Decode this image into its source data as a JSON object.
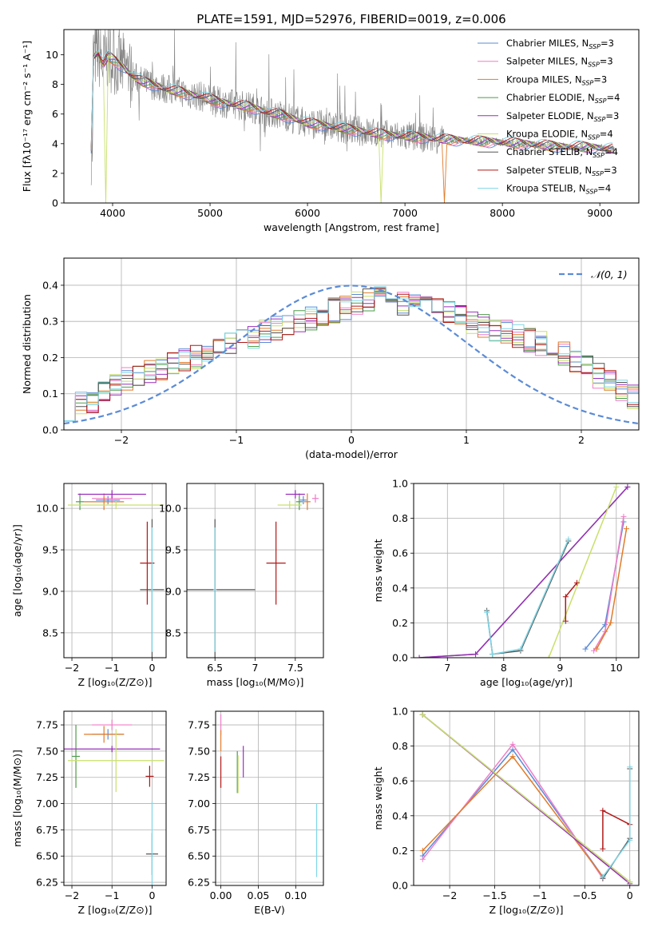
{
  "figure_title": "PLATE=1591, MJD=52976, FIBERID=0019, z=0.006",
  "colors": {
    "chabrier_miles": "#5b8bd6",
    "salpeter_miles": "#f07cc8",
    "kroupa_miles": "#e07b2a",
    "chabrier_elodie": "#4e9c4a",
    "salpeter_elodie": "#9a2ebc",
    "kroupa_elodie": "#c8e06a",
    "chabrier_stelib": "#555555",
    "salpeter_stelib": "#b01818",
    "kroupa_stelib": "#7fd6e6",
    "data": "#808080",
    "normal": "#5b8bd6"
  },
  "chart_data": [
    {
      "id": "spectrum",
      "type": "line",
      "title": "PLATE=1591, MJD=52976, FIBERID=0019, z=0.006",
      "xlabel": "wavelength [Angstrom, rest frame]",
      "ylabel": "Flux [fλ10⁻¹⁷ erg cm⁻² s⁻¹ A⁻¹]",
      "xlim": [
        3500,
        9400
      ],
      "ylim": [
        0,
        11.7
      ],
      "xticks": [
        4000,
        5000,
        6000,
        7000,
        8000,
        9000
      ],
      "yticks": [
        0,
        2,
        4,
        6,
        8,
        10
      ],
      "legend_position": "top-right",
      "legend": [
        {
          "label": "Chabrier MILES, N",
          "sub": "SSP",
          "suffix": "=3",
          "color": "#5b8bd6"
        },
        {
          "label": "Salpeter MILES, N",
          "sub": "SSP",
          "suffix": "=3",
          "color": "#f07cc8"
        },
        {
          "label": "Kroupa MILES, N",
          "sub": "SSP",
          "suffix": "=3",
          "color": "#e07b2a"
        },
        {
          "label": "Chabrier ELODIE, N",
          "sub": "SSP",
          "suffix": "=4",
          "color": "#4e9c4a"
        },
        {
          "label": "Salpeter ELODIE, N",
          "sub": "SSP",
          "suffix": "=3",
          "color": "#9a2ebc"
        },
        {
          "label": "Kroupa ELODIE, N",
          "sub": "SSP",
          "suffix": "=4",
          "color": "#c8e06a"
        },
        {
          "label": "Chabrier STELIB, N",
          "sub": "SSP",
          "suffix": "=4",
          "color": "#555555"
        },
        {
          "label": "Salpeter STELIB, N",
          "sub": "SSP",
          "suffix": "=3",
          "color": "#b01818"
        },
        {
          "label": "Kroupa STELIB, N",
          "sub": "SSP",
          "suffix": "=4",
          "color": "#7fd6e6"
        }
      ],
      "model_curve": {
        "x": [
          3800,
          3850,
          3900,
          3950,
          4000,
          4100,
          4200,
          4300,
          4400,
          4500,
          4600,
          4700,
          4800,
          4900,
          5000,
          5100,
          5200,
          5300,
          5400,
          5500,
          5600,
          5700,
          5800,
          5900,
          6000,
          6200,
          6400,
          6600,
          6800,
          7000,
          7200,
          7400,
          7600,
          7800,
          8000,
          8200,
          8400,
          8600,
          8800,
          9000,
          9200
        ],
        "y": [
          9.8,
          10.2,
          9.3,
          9.9,
          9.7,
          9.2,
          8.6,
          8.2,
          8.0,
          7.8,
          7.6,
          7.5,
          7.3,
          7.2,
          7.0,
          6.8,
          6.7,
          6.6,
          6.5,
          6.3,
          6.1,
          6.0,
          5.8,
          5.6,
          5.4,
          5.2,
          5.0,
          4.8,
          4.6,
          4.5,
          4.4,
          4.3,
          4.2,
          4.15,
          4.1,
          4.0,
          3.9,
          3.8,
          3.8,
          3.7,
          3.6
        ]
      },
      "model_dropouts": [
        {
          "x": 3930,
          "series": "Kroupa ELODIE"
        },
        {
          "x": 6760,
          "series": "Kroupa ELODIE"
        },
        {
          "x": 7400,
          "series": "Kroupa MILES"
        }
      ]
    },
    {
      "id": "residuals",
      "type": "line",
      "xlabel": "(data-model)/error",
      "ylabel": "Normed distribution",
      "xlim": [
        -2.5,
        2.5
      ],
      "ylim": [
        0,
        0.475
      ],
      "xticks": [
        -2,
        -1,
        0,
        1,
        2
      ],
      "yticks": [
        0.0,
        0.1,
        0.2,
        0.3,
        0.4
      ],
      "legend": [
        {
          "label": "𝒩(0, 1)",
          "color": "#5b8bd6",
          "style": "dashed"
        }
      ],
      "legend_position": "top-right",
      "histogram_base": {
        "bin_edges_start": -2.5,
        "bin_width": 0.1,
        "values": [
          0.06,
          0.07,
          0.08,
          0.1,
          0.12,
          0.14,
          0.15,
          0.16,
          0.17,
          0.18,
          0.19,
          0.2,
          0.21,
          0.22,
          0.24,
          0.25,
          0.26,
          0.27,
          0.28,
          0.29,
          0.3,
          0.31,
          0.32,
          0.33,
          0.34,
          0.35,
          0.36,
          0.37,
          0.36,
          0.35,
          0.35,
          0.34,
          0.33,
          0.32,
          0.31,
          0.3,
          0.29,
          0.28,
          0.27,
          0.26,
          0.25,
          0.24,
          0.22,
          0.21,
          0.19,
          0.17,
          0.15,
          0.13,
          0.11,
          0.09
        ]
      }
    },
    {
      "id": "age-vs-Z",
      "type": "scatter",
      "xlabel": "Z [log₁₀(Z/Z⊙)]",
      "ylabel": "age  [log₁₀(age/yr)]",
      "xlim": [
        -2.2,
        0.35
      ],
      "ylim": [
        8.2,
        10.3
      ],
      "xticks": [
        -2,
        -1,
        0
      ],
      "yticks": [
        8.5,
        9.0,
        9.5,
        10.0
      ],
      "points": [
        {
          "series": "Chabrier MILES",
          "x": -1.1,
          "y": 10.1,
          "xerr": 0.3,
          "yerr": 0.05
        },
        {
          "series": "Salpeter MILES",
          "x": -1.0,
          "y": 10.12,
          "xerr": 0.5,
          "yerr": 0.05
        },
        {
          "series": "Kroupa MILES",
          "x": -1.2,
          "y": 10.08,
          "xerr": 0.5,
          "yerr": 0.1
        },
        {
          "series": "Chabrier ELODIE",
          "x": -1.8,
          "y": 10.08,
          "xerr": 0.1,
          "yerr": 0.1
        },
        {
          "series": "Salpeter ELODIE",
          "x": -1.0,
          "y": 10.17,
          "xerr": 0.85,
          "yerr": 0.05
        },
        {
          "series": "Kroupa ELODIE",
          "x": -0.9,
          "y": 10.04,
          "xerr": 1.2,
          "yerr": 0.05
        },
        {
          "series": "Chabrier STELIB",
          "x": 0.0,
          "y": 9.02,
          "xerr": 0.3,
          "yerr": 0.85
        },
        {
          "series": "Salpeter STELIB",
          "x": -0.12,
          "y": 9.34,
          "xerr": 0.18,
          "yerr": 0.5
        },
        {
          "series": "Kroupa STELIB",
          "x": 0.0,
          "y": 9.02,
          "xerr": 0.02,
          "yerr": 0.75
        }
      ]
    },
    {
      "id": "age-vs-mass",
      "type": "scatter",
      "xlabel": "mass [log₁₀(M/M⊙)]",
      "ylabel": "",
      "xlim": [
        6.15,
        7.85
      ],
      "ylim": [
        8.2,
        10.3
      ],
      "xticks": [
        6.5,
        7.0,
        7.5
      ],
      "yticks": [
        8.5,
        9.0,
        9.5,
        10.0
      ],
      "points": [
        {
          "series": "Chabrier MILES",
          "x": 7.6,
          "y": 10.1,
          "xerr": 0.04,
          "yerr": 0.05
        },
        {
          "series": "Salpeter MILES",
          "x": 7.75,
          "y": 10.12,
          "xerr": 0.04,
          "yerr": 0.05
        },
        {
          "series": "Kroupa MILES",
          "x": 7.65,
          "y": 10.08,
          "xerr": 0.04,
          "yerr": 0.1
        },
        {
          "series": "Chabrier ELODIE",
          "x": 7.55,
          "y": 10.08,
          "xerr": 0.04,
          "yerr": 0.1
        },
        {
          "series": "Salpeter ELODIE",
          "x": 7.5,
          "y": 10.17,
          "xerr": 0.12,
          "yerr": 0.05
        },
        {
          "series": "Kroupa ELODIE",
          "x": 7.43,
          "y": 10.04,
          "xerr": 0.15,
          "yerr": 0.05
        },
        {
          "series": "Chabrier STELIB",
          "x": 6.5,
          "y": 9.02,
          "xerr": 0.5,
          "yerr": 0.85
        },
        {
          "series": "Salpeter STELIB",
          "x": 7.26,
          "y": 9.34,
          "xerr": 0.12,
          "yerr": 0.5
        },
        {
          "series": "Kroupa STELIB",
          "x": 6.5,
          "y": 9.02,
          "xerr": 0.02,
          "yerr": 0.75
        }
      ]
    },
    {
      "id": "weight-vs-age",
      "type": "line",
      "xlabel": "age  [log₁₀(age/yr)]",
      "ylabel": "mass weight",
      "xlim": [
        6.4,
        10.4
      ],
      "ylim": [
        0,
        1.0
      ],
      "xticks": [
        7,
        8,
        9,
        10
      ],
      "yticks": [
        0.0,
        0.2,
        0.4,
        0.6,
        0.8,
        1.0
      ],
      "series": [
        {
          "name": "Chabrier MILES",
          "x": [
            9.45,
            9.8,
            10.13
          ],
          "y": [
            0.05,
            0.19,
            0.78
          ]
        },
        {
          "name": "Salpeter MILES",
          "x": [
            9.6,
            9.8,
            10.13
          ],
          "y": [
            0.04,
            0.15,
            0.81
          ]
        },
        {
          "name": "Kroupa MILES",
          "x": [
            9.65,
            9.9,
            10.18
          ],
          "y": [
            0.05,
            0.2,
            0.74
          ]
        },
        {
          "name": "Chabrier ELODIE",
          "x": [
            6.5,
            7.5,
            10.2
          ],
          "y": [
            0.0,
            0.02,
            0.98
          ]
        },
        {
          "name": "Salpeter ELODIE",
          "x": [
            6.5,
            7.5,
            10.2
          ],
          "y": [
            0.0,
            0.02,
            0.98
          ]
        },
        {
          "name": "Kroupa ELODIE",
          "x": [
            7.8,
            8.8,
            10.0
          ],
          "y": [
            0.0,
            0.0,
            0.98
          ]
        },
        {
          "name": "Chabrier STELIB",
          "x": [
            7.7,
            7.8,
            8.3,
            9.15
          ],
          "y": [
            0.27,
            0.02,
            0.04,
            0.67
          ]
        },
        {
          "name": "Salpeter STELIB",
          "x": [
            9.1,
            9.1,
            9.3
          ],
          "y": [
            0.21,
            0.35,
            0.43
          ]
        },
        {
          "name": "Kroupa STELIB",
          "x": [
            7.7,
            7.8,
            8.3,
            9.15
          ],
          "y": [
            0.26,
            0.02,
            0.05,
            0.68
          ]
        }
      ]
    },
    {
      "id": "mass-vs-Z",
      "type": "scatter",
      "xlabel": "Z [log₁₀(Z/Z⊙)]",
      "ylabel": "mass [log₁₀(M/M⊙)]",
      "xlim": [
        -2.2,
        0.35
      ],
      "ylim": [
        6.22,
        7.88
      ],
      "xticks": [
        -2,
        -1,
        0
      ],
      "yticks": [
        6.25,
        6.5,
        6.75,
        7.0,
        7.25,
        7.5,
        7.75
      ],
      "points": [
        {
          "series": "Chabrier MILES",
          "x": -1.1,
          "y": 7.66,
          "xerr": 0.4,
          "yerr": 0.05
        },
        {
          "series": "Salpeter MILES",
          "x": -1.0,
          "y": 7.75,
          "xerr": 0.5,
          "yerr": 0.05
        },
        {
          "series": "Kroupa MILES",
          "x": -1.2,
          "y": 7.66,
          "xerr": 0.5,
          "yerr": 0.08
        },
        {
          "series": "Chabrier ELODIE",
          "x": -1.9,
          "y": 7.45,
          "xerr": 0.1,
          "yerr": 0.3
        },
        {
          "series": "Salpeter ELODIE",
          "x": -1.0,
          "y": 7.52,
          "xerr": 1.2,
          "yerr": 0.03
        },
        {
          "series": "Kroupa ELODIE",
          "x": -0.9,
          "y": 7.41,
          "xerr": 1.2,
          "yerr": 0.3
        },
        {
          "series": "Chabrier STELIB",
          "x": 0.0,
          "y": 6.52,
          "xerr": 0.15,
          "yerr": 0.2
        },
        {
          "series": "Salpeter STELIB",
          "x": -0.06,
          "y": 7.26,
          "xerr": 0.1,
          "yerr": 0.1
        },
        {
          "series": "Kroupa STELIB",
          "x": 0.0,
          "y": 6.5,
          "xerr": 0.02,
          "yerr": 0.52
        }
      ]
    },
    {
      "id": "mass-vs-ebv",
      "type": "scatter",
      "xlabel": "E(B-V)",
      "ylabel": "",
      "xlim": [
        -0.007,
        0.137
      ],
      "ylim": [
        6.22,
        7.88
      ],
      "xticks": [
        0.0,
        0.05,
        0.1
      ],
      "xtick_labels": [
        "0.00",
        "0.05",
        "0.10"
      ],
      "yticks": [
        6.25,
        6.5,
        6.75,
        7.0,
        7.25,
        7.5,
        7.75
      ],
      "points": [
        {
          "series": "Salpeter MILES",
          "x": 0.0,
          "y": 7.75,
          "xerr": 0.0,
          "yerr": 0.1
        },
        {
          "series": "Kroupa MILES",
          "x": 0.0,
          "y": 7.6,
          "xerr": 0.0,
          "yerr": 0.1
        },
        {
          "series": "Salpeter STELIB",
          "x": 0.0,
          "y": 7.3,
          "xerr": 0.0,
          "yerr": 0.15
        },
        {
          "series": "Chabrier ELODIE",
          "x": 0.022,
          "y": 7.3,
          "xerr": 0.0,
          "yerr": 0.2
        },
        {
          "series": "Kroupa ELODIE",
          "x": 0.023,
          "y": 7.28,
          "xerr": 0.0,
          "yerr": 0.18
        },
        {
          "series": "Salpeter ELODIE",
          "x": 0.03,
          "y": 7.4,
          "xerr": 0.0,
          "yerr": 0.15
        },
        {
          "series": "Kroupa STELIB",
          "x": 0.128,
          "y": 6.65,
          "xerr": 0.0,
          "yerr": 0.35
        }
      ]
    },
    {
      "id": "weight-vs-Z",
      "type": "line",
      "xlabel": "Z [log₁₀(Z/Z⊙)]",
      "ylabel": "mass weight",
      "xlim": [
        -2.4,
        0.1
      ],
      "ylim": [
        0,
        1.0
      ],
      "xticks": [
        -2.0,
        -1.5,
        -1.0,
        -0.5,
        0.0
      ],
      "yticks": [
        0.0,
        0.2,
        0.4,
        0.6,
        0.8,
        1.0
      ],
      "series": [
        {
          "name": "Chabrier MILES",
          "x": [
            -2.3,
            -1.3,
            -0.3
          ],
          "y": [
            0.17,
            0.78,
            0.05
          ]
        },
        {
          "name": "Salpeter MILES",
          "x": [
            -2.3,
            -1.3,
            -0.3
          ],
          "y": [
            0.15,
            0.81,
            0.04
          ]
        },
        {
          "name": "Kroupa MILES",
          "x": [
            -2.3,
            -1.3,
            -0.3
          ],
          "y": [
            0.2,
            0.74,
            0.05
          ]
        },
        {
          "name": "Chabrier ELODIE",
          "x": [
            -2.3,
            0.0
          ],
          "y": [
            0.98,
            0.02
          ]
        },
        {
          "name": "Salpeter ELODIE",
          "x": [
            -2.3,
            0.0
          ],
          "y": [
            0.98,
            0.01
          ]
        },
        {
          "name": "Kroupa ELODIE",
          "x": [
            -2.3,
            0.0
          ],
          "y": [
            0.98,
            0.02
          ]
        },
        {
          "name": "Chabrier STELIB",
          "x": [
            -0.3,
            0.0,
            0.0
          ],
          "y": [
            0.04,
            0.27,
            0.67
          ]
        },
        {
          "name": "Salpeter STELIB",
          "x": [
            -0.3,
            -0.3,
            0.0
          ],
          "y": [
            0.21,
            0.43,
            0.35
          ]
        },
        {
          "name": "Kroupa STELIB",
          "x": [
            -0.3,
            0.0,
            0.0
          ],
          "y": [
            0.05,
            0.26,
            0.68
          ]
        }
      ]
    }
  ]
}
